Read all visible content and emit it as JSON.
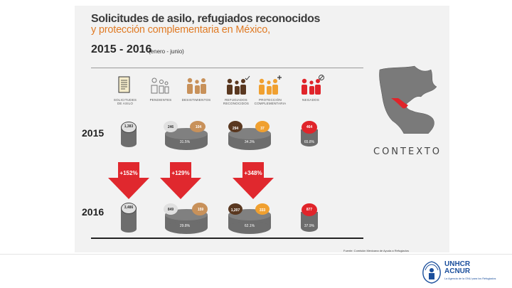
{
  "title": {
    "line1": "Solicitudes de asilo, refugiados reconocidos",
    "line2": "y protección complementaria en México,",
    "line3": "2015 - 2016",
    "note": "(enero - junio)"
  },
  "categories": [
    {
      "label1": "SOLICITUDES",
      "label2": "DE ASILO",
      "icon": "document-icon"
    },
    {
      "label1": "PENDIENTES",
      "label2": "",
      "icon": "people-outline-icon"
    },
    {
      "label1": "DESISTIMIENTOS",
      "label2": "",
      "icon": "people-tan-icon"
    },
    {
      "label1": "REFUGIADOS",
      "label2": "RECONOCIDOS",
      "icon": "people-check-icon"
    },
    {
      "label1": "PROTECCIÓN",
      "label2": "COMPLEMENTARIA",
      "icon": "people-plus-icon"
    },
    {
      "label1": "NEGADOS",
      "label2": "",
      "icon": "people-denied-icon"
    }
  ],
  "rows": [
    {
      "year": "2015",
      "solicitudes": "1,383",
      "pendientes": "246",
      "desistimientos": "104",
      "desist_pct": "31.5%",
      "reconocidos": "294",
      "complementaria": "37",
      "ref_pct": "34.3%",
      "negados": "464",
      "neg_pct": "65.8%"
    },
    {
      "year": "2016",
      "solicitudes": "3,486",
      "pendientes": "849",
      "desistimientos": "159",
      "desist_pct": "29.8%",
      "reconocidos": "1,207",
      "complementaria": "333",
      "ref_pct": "62.1%",
      "negados": "877",
      "neg_pct": "37.9%"
    }
  ],
  "arrows": [
    "+152%",
    "+129%",
    "+348%"
  ],
  "contexto": "CONTEXTO",
  "source": "Fuente: Comisión Mexicana de Ayuda a Refugiados",
  "logo": {
    "line1": "UNHCR",
    "line2": "ACNUR",
    "sub": "La Agencia de la ONU para los Refugiados"
  },
  "colors": {
    "gray": "#6d6d6d",
    "tan": "#c8915a",
    "brown": "#5a3820",
    "orange": "#f0a030",
    "red": "#e0242a",
    "arrow": "#e0282e",
    "unhcr_blue": "#1b4f9c"
  }
}
